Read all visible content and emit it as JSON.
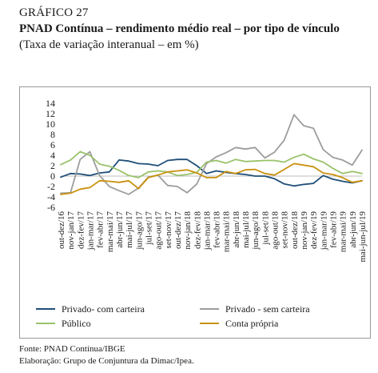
{
  "header": {
    "label": "GRÁFICO 27",
    "title": "PNAD Contínua – rendimento médio real – por tipo de vínculo",
    "subtitle": "(Taxa de variação interanual – em %)"
  },
  "footer": {
    "source": "Fonte: PNAD Contínua/IBGE",
    "credit": "Elaboração: Grupo de Conjuntura da Dimac/Ipea."
  },
  "chart_data": {
    "type": "line",
    "categories": [
      "out-dez/16",
      "nov-jan/17",
      "dez-fev/17",
      "jan-mar/17",
      "fev-abr/17",
      "mar-mai/17",
      "abr-jun/17",
      "mai-jul/17",
      "jun-ago/17",
      "jul-set/17",
      "ago-out/17",
      "set-nov/17",
      "out-dez/17",
      "nov-jan/18",
      "dez-fev/18",
      "jan-mar/18",
      "fev-abr/18",
      "mar-mai/18",
      "abr-jun/18",
      "mai-jul/18",
      "jun-ago/18",
      "jul-set/18",
      "ago-out/18",
      "set-nov/18",
      "out-dez/18",
      "nov-jan/19",
      "dez-fev/19",
      "jan-mar/19",
      "fev-abr/19",
      "mar-mai/19",
      "abr-jun/19",
      "mai-jun-jul/19"
    ],
    "ylim": [
      -6,
      14
    ],
    "yticks": [
      -6,
      -4,
      -2,
      0,
      2,
      4,
      6,
      8,
      10,
      12,
      14
    ],
    "legend_position": "bottom",
    "series": [
      {
        "name": "Privado- com carteira",
        "color": "#1f4e79",
        "values": [
          -0.2,
          0.5,
          0.4,
          0.1,
          0.6,
          0.8,
          3.1,
          2.9,
          2.4,
          2.3,
          2.0,
          3.0,
          3.2,
          3.2,
          2.0,
          0.5,
          1.0,
          0.7,
          0.5,
          0.3,
          0.0,
          0.0,
          -0.5,
          -1.5,
          -1.9,
          -1.6,
          -1.4,
          0.1,
          -0.6,
          -1.0,
          -1.3,
          -0.9
        ]
      },
      {
        "name": "Privado - sem carteira",
        "color": "#9d9d9d",
        "values": [
          -3.3,
          -3.2,
          3.2,
          4.7,
          0.1,
          -2.0,
          -2.8,
          -3.5,
          -2.3,
          -0.2,
          0.2,
          -1.8,
          -2.0,
          -3.2,
          -1.5,
          2.4,
          3.7,
          4.5,
          5.5,
          5.2,
          5.5,
          3.5,
          4.6,
          6.9,
          11.8,
          9.7,
          9.2,
          5.1,
          3.6,
          3.1,
          2.1,
          5.0
        ]
      },
      {
        "name": "Público",
        "color": "#9ac26b",
        "values": [
          2.2,
          3.1,
          4.7,
          4.0,
          2.3,
          1.9,
          1.1,
          0.1,
          -0.3,
          0.8,
          1.0,
          0.8,
          0.1,
          0.3,
          0.7,
          2.7,
          3.0,
          2.5,
          3.2,
          2.8,
          2.9,
          3.0,
          3.0,
          2.7,
          3.6,
          4.2,
          3.3,
          2.7,
          1.5,
          0.5,
          0.9,
          0.5
        ]
      },
      {
        "name": "Conta própria",
        "color": "#c9910e",
        "values": [
          -3.5,
          -3.3,
          -2.5,
          -2.2,
          -0.9,
          -1.0,
          -1.2,
          -0.9,
          -2.4,
          -0.3,
          0.2,
          0.8,
          1.0,
          1.2,
          0.6,
          -0.3,
          -0.3,
          0.9,
          0.5,
          1.2,
          1.3,
          0.5,
          0.2,
          1.3,
          2.4,
          2.1,
          1.8,
          0.6,
          0.3,
          -0.3,
          -1.2,
          -0.9
        ]
      }
    ]
  }
}
